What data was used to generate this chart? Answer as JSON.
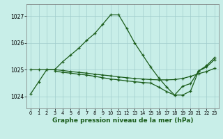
{
  "background_color": "#c8eee8",
  "grid_color": "#a0cccc",
  "line_color": "#1a5c1a",
  "x_ticks": [
    0,
    1,
    2,
    3,
    4,
    5,
    6,
    7,
    8,
    9,
    10,
    11,
    12,
    13,
    14,
    15,
    16,
    17,
    18,
    19,
    20,
    21,
    22,
    23
  ],
  "y_ticks": [
    1024,
    1025,
    1026,
    1027
  ],
  "ylim": [
    1023.55,
    1027.45
  ],
  "xlim": [
    -0.5,
    23.5
  ],
  "xlabel": "Graphe pression niveau de la mer (hPa)",
  "s1_x": [
    0,
    1,
    2,
    3,
    4,
    5,
    6,
    7,
    8,
    9,
    10,
    11,
    12,
    13,
    14,
    15,
    16,
    17,
    18,
    19,
    20,
    21,
    22,
    23
  ],
  "s1_y": [
    1024.1,
    1024.55,
    1025.0,
    1025.0,
    1025.3,
    1025.55,
    1025.8,
    1026.1,
    1026.35,
    1026.7,
    1027.05,
    1027.05,
    1026.55,
    1026.0,
    1025.55,
    1025.1,
    1024.7,
    1024.35,
    1024.05,
    1024.05,
    1024.2,
    1024.95,
    1025.15,
    1025.45
  ],
  "s2_x": [
    0,
    1,
    2,
    3,
    4,
    5,
    6,
    7,
    8,
    9,
    10,
    11,
    12,
    13,
    14,
    15,
    16,
    17,
    18,
    19,
    20,
    21,
    22,
    23
  ],
  "s2_y": [
    1025.0,
    1025.0,
    1025.0,
    1025.0,
    1024.97,
    1024.93,
    1024.9,
    1024.87,
    1024.83,
    1024.8,
    1024.77,
    1024.73,
    1024.7,
    1024.67,
    1024.65,
    1024.63,
    1024.62,
    1024.62,
    1024.63,
    1024.67,
    1024.75,
    1024.85,
    1024.93,
    1025.05
  ],
  "s3_x": [
    3,
    4,
    5,
    6,
    7,
    8,
    9,
    10,
    11,
    12,
    13,
    14,
    15,
    16,
    17,
    18,
    19,
    20,
    21,
    22,
    23
  ],
  "s3_y": [
    1024.95,
    1024.9,
    1024.87,
    1024.83,
    1024.8,
    1024.75,
    1024.7,
    1024.65,
    1024.62,
    1024.58,
    1024.55,
    1024.52,
    1024.5,
    1024.35,
    1024.18,
    1024.05,
    1024.38,
    1024.48,
    1024.95,
    1025.1,
    1025.38
  ]
}
